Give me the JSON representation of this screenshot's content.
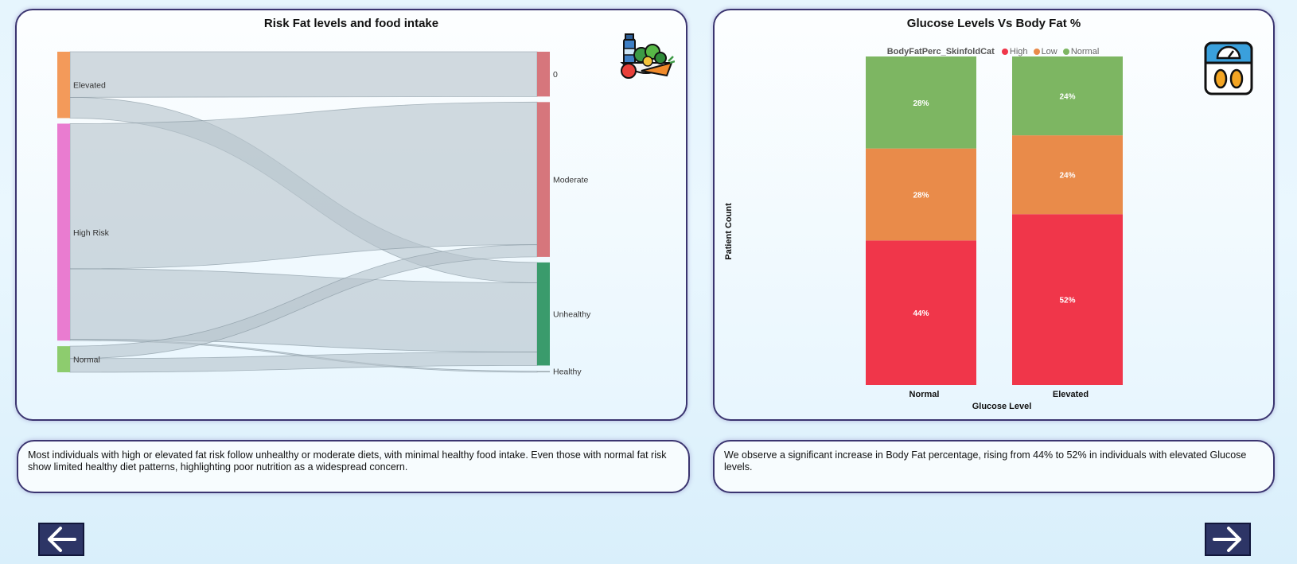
{
  "sankey": {
    "title": "Risk Fat levels and food intake",
    "icon": "healthy-food-icon",
    "chart_data": {
      "type": "sankey",
      "sources": [
        "Elevated",
        "High Risk",
        "Normal"
      ],
      "targets": [
        "0",
        "Moderate",
        "Unhealthy",
        "Healthy"
      ],
      "node_colors": {
        "Elevated": "#f39a5a",
        "High Risk": "#e97cd0",
        "Normal": "#8dcc6e",
        "0": "#d6767c",
        "Moderate": "#d6767c",
        "Unhealthy": "#3a9b6c",
        "Healthy": "#9aa7ad"
      },
      "links": [
        {
          "source": "Elevated",
          "target": "0",
          "value": 11
        },
        {
          "source": "Elevated",
          "target": "Unhealthy",
          "value": 5
        },
        {
          "source": "High Risk",
          "target": "Moderate",
          "value": 35
        },
        {
          "source": "High Risk",
          "target": "Unhealthy",
          "value": 17
        },
        {
          "source": "High Risk",
          "target": "Healthy",
          "value": 0.3
        },
        {
          "source": "Normal",
          "target": "Moderate",
          "value": 3
        },
        {
          "source": "Normal",
          "target": "Unhealthy",
          "value": 3.3
        }
      ]
    }
  },
  "bar": {
    "title": "Glucose Levels Vs Body Fat %",
    "icon": "body-scale-icon",
    "chart_data": {
      "type": "bar",
      "stacked": "100%",
      "categories": [
        "Normal",
        "Elevated"
      ],
      "xlabel": "Glucose Level",
      "ylabel": "Patient Count",
      "legend_title": "BodyFatPerc_SkinfoldCat",
      "legend_position": "top",
      "series": [
        {
          "name": "High",
          "color": "#f0364a",
          "values": [
            44,
            52
          ],
          "labels": [
            "44%",
            "52%"
          ]
        },
        {
          "name": "Low",
          "color": "#e98b4a",
          "values": [
            28,
            24
          ],
          "labels": [
            "28%",
            "24%"
          ]
        },
        {
          "name": "Normal",
          "color": "#7db662",
          "values": [
            28,
            24
          ],
          "labels": [
            "28%",
            "24%"
          ]
        }
      ]
    }
  },
  "notes": {
    "left": "Most individuals with high or elevated fat risk follow unhealthy or moderate diets, with minimal healthy food intake. Even those with normal fat risk show limited healthy diet patterns, highlighting poor nutrition as a widespread concern.",
    "right": "We observe a significant increase in Body Fat percentage, rising from 44% to 52% in individuals with elevated Glucose levels."
  },
  "nav": {
    "back_icon": "arrow-left-icon",
    "next_icon": "arrow-right-icon"
  }
}
